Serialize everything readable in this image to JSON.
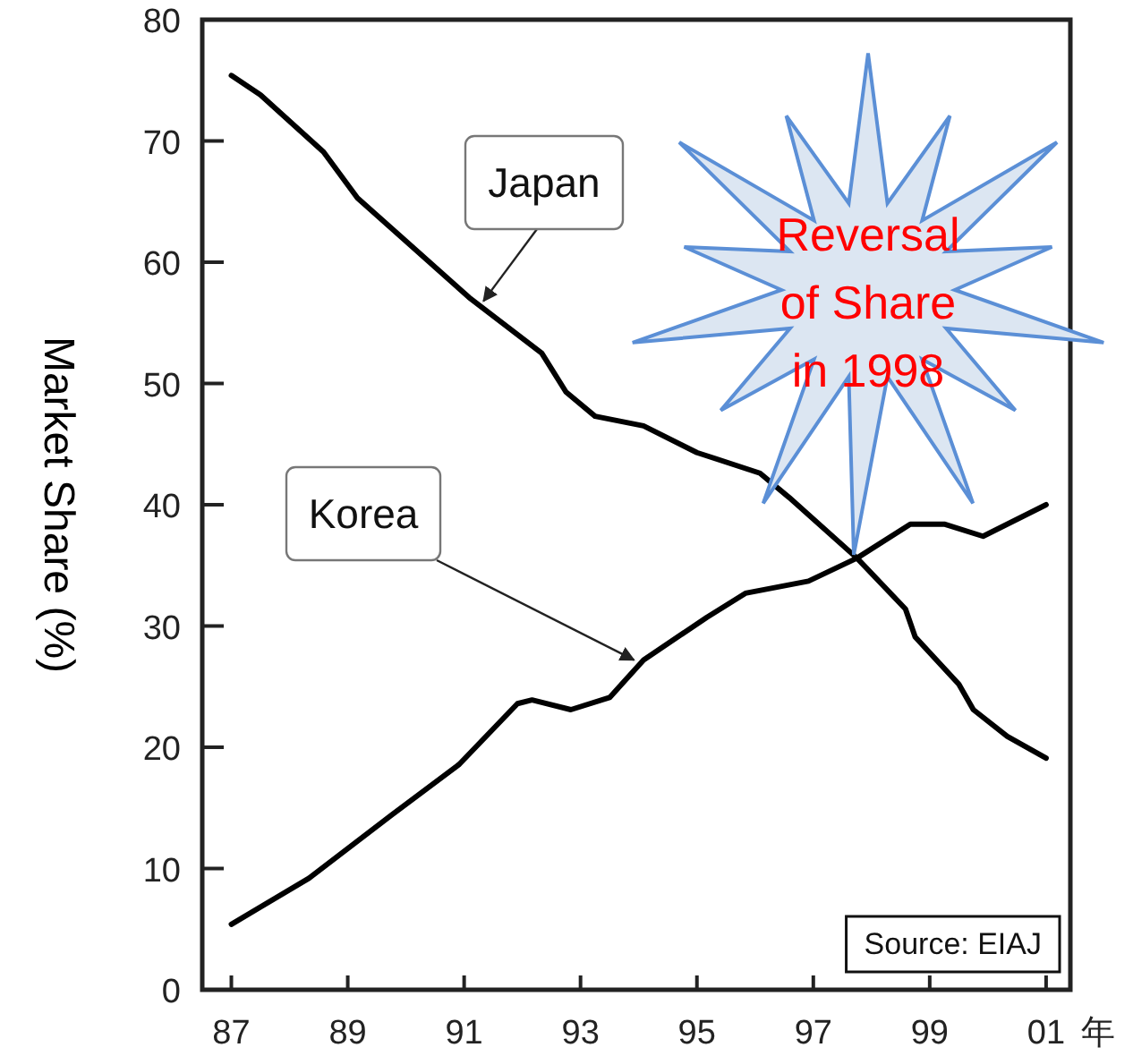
{
  "chart_data": {
    "type": "line",
    "ylabel": "Market Share (%)",
    "xlabel": "年",
    "xlim": [
      "1986-07",
      "2001-06"
    ],
    "ylim": [
      0,
      80
    ],
    "xticks": [
      {
        "value": "1987",
        "label": "87"
      },
      {
        "value": "1989",
        "label": "89"
      },
      {
        "value": "1991",
        "label": "91"
      },
      {
        "value": "1993",
        "label": "93"
      },
      {
        "value": "1995",
        "label": "95"
      },
      {
        "value": "1997",
        "label": "97"
      },
      {
        "value": "1999",
        "label": "99"
      },
      {
        "value": "2001",
        "label": "01"
      }
    ],
    "yticks": [
      0,
      10,
      20,
      30,
      40,
      50,
      60,
      70,
      80
    ],
    "grid": false,
    "marker": "none",
    "line_style": "solid",
    "series": [
      {
        "color": "#000000",
        "x": [
          "1987-01",
          "1987-07",
          "1988-08",
          "1989-03",
          "1991-02",
          "1992-05",
          "1992-10",
          "1993-04",
          "1994-02",
          "1995-01",
          "1996-02",
          "1996-08",
          "1997-10",
          "1998-08",
          "1998-10",
          "1999-07",
          "1999-10",
          "2000-05",
          "2001-01"
        ],
        "values": [
          75.4,
          73.8,
          69.1,
          65.3,
          57.1,
          52.5,
          49.3,
          47.3,
          46.5,
          44.3,
          42.6,
          40.6,
          35.6,
          31.4,
          29.1,
          25.2,
          23.1,
          20.9,
          19.1
        ]
      },
      {
        "color": "#000000",
        "x": [
          "1987-01",
          "1988-05",
          "1989-10",
          "1990-12",
          "1991-12",
          "1992-03",
          "1992-11",
          "1993-07",
          "1994-02",
          "1995-03",
          "1995-11",
          "1996-12",
          "1997-10",
          "1998-09",
          "1999-04",
          "1999-12",
          "2001-01"
        ],
        "values": [
          5.4,
          9.2,
          14.4,
          18.6,
          23.6,
          23.9,
          23.1,
          24.1,
          27.2,
          30.7,
          32.7,
          33.7,
          35.6,
          38.4,
          38.4,
          37.4,
          40.0
        ]
      }
    ],
    "annotations": [
      {
        "text": "Japan",
        "x": "1991-05",
        "y": 56.8
      },
      {
        "text": "Korea",
        "x": "1993-12",
        "y": 27.2
      },
      "Reversal of Share in 1998",
      "Source: EIAJ"
    ]
  }
}
